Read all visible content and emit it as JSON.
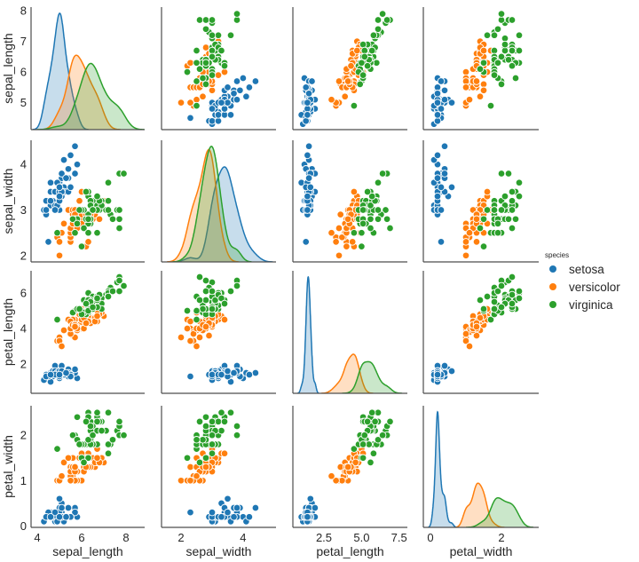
{
  "chart_data": {
    "type": "scatter",
    "subtype": "pairplot",
    "variables": [
      "sepal_length",
      "sepal_width",
      "petal_length",
      "petal_width"
    ],
    "diagonal": "kde",
    "grid": false,
    "legend": {
      "title": "species",
      "placement": "right",
      "entries": [
        "setosa",
        "versicolor",
        "virginica"
      ]
    },
    "colors": {
      "setosa": "#1f77b4",
      "versicolor": "#ff7f0e",
      "virginica": "#2ca02c"
    },
    "axes": {
      "sepal_length": {
        "label": "sepal_length",
        "xlim": [
          3.72,
          8.84
        ],
        "ylim": [
          4.12,
          8.12
        ],
        "xticks": [
          "4",
          "6",
          "8"
        ],
        "xtick_values": [
          4,
          6,
          8
        ],
        "yticks": [
          "5",
          "6",
          "7",
          "8"
        ],
        "ytick_values": [
          5,
          6,
          7,
          8
        ]
      },
      "sepal_width": {
        "label": "sepal_width",
        "xlim": [
          1.37,
          5.06
        ],
        "ylim": [
          1.86,
          4.53
        ],
        "xticks": [
          "2",
          "4"
        ],
        "xtick_values": [
          2,
          4
        ],
        "yticks": [
          "2",
          "3",
          "4"
        ],
        "ytick_values": [
          2,
          3,
          4
        ]
      },
      "petal_length": {
        "label": "petal_length",
        "xlim": [
          0.43,
          8.05
        ],
        "ylim": [
          0.35,
          7.25
        ],
        "xticks": [
          "2.5",
          "5.0",
          "7.5"
        ],
        "xtick_values": [
          2.5,
          5.0,
          7.5
        ],
        "yticks": [
          "2",
          "4",
          "6"
        ],
        "ytick_values": [
          2,
          4,
          6
        ]
      },
      "petal_width": {
        "label": "petal_width",
        "xlim": [
          -0.2,
          3.05
        ],
        "ylim": [
          -0.03,
          2.65
        ],
        "xticks": [
          "0",
          "2"
        ],
        "xtick_values": [
          0,
          2
        ],
        "yticks": [
          "0",
          "1",
          "2"
        ],
        "ytick_values": [
          0,
          1,
          2
        ]
      }
    },
    "series": [
      {
        "name": "setosa",
        "points": [
          [
            5.1,
            3.5,
            1.4,
            0.2
          ],
          [
            4.9,
            3.0,
            1.4,
            0.2
          ],
          [
            4.7,
            3.2,
            1.3,
            0.2
          ],
          [
            4.6,
            3.1,
            1.5,
            0.2
          ],
          [
            5.0,
            3.6,
            1.4,
            0.2
          ],
          [
            5.4,
            3.9,
            1.7,
            0.4
          ],
          [
            4.6,
            3.4,
            1.4,
            0.3
          ],
          [
            5.0,
            3.4,
            1.5,
            0.2
          ],
          [
            4.4,
            2.9,
            1.4,
            0.2
          ],
          [
            4.9,
            3.1,
            1.5,
            0.1
          ],
          [
            5.4,
            3.7,
            1.5,
            0.2
          ],
          [
            4.8,
            3.4,
            1.6,
            0.2
          ],
          [
            4.8,
            3.0,
            1.4,
            0.1
          ],
          [
            4.3,
            3.0,
            1.1,
            0.1
          ],
          [
            5.8,
            4.0,
            1.2,
            0.2
          ],
          [
            5.7,
            4.4,
            1.5,
            0.4
          ],
          [
            5.4,
            3.9,
            1.3,
            0.4
          ],
          [
            5.1,
            3.5,
            1.4,
            0.3
          ],
          [
            5.7,
            3.8,
            1.7,
            0.3
          ],
          [
            5.1,
            3.8,
            1.5,
            0.3
          ],
          [
            5.4,
            3.4,
            1.7,
            0.2
          ],
          [
            5.1,
            3.7,
            1.5,
            0.4
          ],
          [
            4.6,
            3.6,
            1.0,
            0.2
          ],
          [
            5.1,
            3.3,
            1.7,
            0.5
          ],
          [
            4.8,
            3.4,
            1.9,
            0.2
          ],
          [
            5.0,
            3.0,
            1.6,
            0.2
          ],
          [
            5.0,
            3.4,
            1.6,
            0.4
          ],
          [
            5.2,
            3.5,
            1.5,
            0.2
          ],
          [
            5.2,
            3.4,
            1.4,
            0.2
          ],
          [
            4.7,
            3.2,
            1.6,
            0.2
          ],
          [
            4.8,
            3.1,
            1.6,
            0.2
          ],
          [
            5.4,
            3.4,
            1.5,
            0.4
          ],
          [
            5.2,
            4.1,
            1.5,
            0.1
          ],
          [
            5.5,
            4.2,
            1.4,
            0.2
          ],
          [
            4.9,
            3.1,
            1.5,
            0.2
          ],
          [
            5.0,
            3.2,
            1.2,
            0.2
          ],
          [
            5.5,
            3.5,
            1.3,
            0.2
          ],
          [
            4.9,
            3.6,
            1.4,
            0.1
          ],
          [
            4.4,
            3.0,
            1.3,
            0.2
          ],
          [
            5.1,
            3.4,
            1.5,
            0.2
          ],
          [
            5.0,
            3.5,
            1.3,
            0.3
          ],
          [
            4.5,
            2.3,
            1.3,
            0.3
          ],
          [
            4.4,
            3.2,
            1.3,
            0.2
          ],
          [
            5.0,
            3.5,
            1.6,
            0.6
          ],
          [
            5.1,
            3.8,
            1.9,
            0.4
          ],
          [
            4.8,
            3.0,
            1.4,
            0.3
          ],
          [
            5.1,
            3.8,
            1.6,
            0.2
          ],
          [
            4.6,
            3.2,
            1.4,
            0.2
          ],
          [
            5.3,
            3.7,
            1.5,
            0.2
          ],
          [
            5.0,
            3.3,
            1.4,
            0.2
          ]
        ]
      },
      {
        "name": "versicolor",
        "points": [
          [
            7.0,
            3.2,
            4.7,
            1.4
          ],
          [
            6.4,
            3.2,
            4.5,
            1.5
          ],
          [
            6.9,
            3.1,
            4.9,
            1.5
          ],
          [
            5.5,
            2.3,
            4.0,
            1.3
          ],
          [
            6.5,
            2.8,
            4.6,
            1.5
          ],
          [
            5.7,
            2.8,
            4.5,
            1.3
          ],
          [
            6.3,
            3.3,
            4.7,
            1.6
          ],
          [
            4.9,
            2.4,
            3.3,
            1.0
          ],
          [
            6.6,
            2.9,
            4.6,
            1.3
          ],
          [
            5.2,
            2.7,
            3.9,
            1.4
          ],
          [
            5.0,
            2.0,
            3.5,
            1.0
          ],
          [
            5.9,
            3.0,
            4.2,
            1.5
          ],
          [
            6.0,
            2.2,
            4.0,
            1.0
          ],
          [
            6.1,
            2.9,
            4.7,
            1.4
          ],
          [
            5.6,
            2.9,
            3.6,
            1.3
          ],
          [
            6.7,
            3.1,
            4.4,
            1.4
          ],
          [
            5.6,
            3.0,
            4.5,
            1.5
          ],
          [
            5.8,
            2.7,
            4.1,
            1.0
          ],
          [
            6.2,
            2.2,
            4.5,
            1.5
          ],
          [
            5.6,
            2.5,
            3.9,
            1.1
          ],
          [
            5.9,
            3.2,
            4.8,
            1.8
          ],
          [
            6.1,
            2.8,
            4.0,
            1.3
          ],
          [
            6.3,
            2.5,
            4.9,
            1.5
          ],
          [
            6.1,
            2.8,
            4.7,
            1.2
          ],
          [
            6.4,
            2.9,
            4.3,
            1.3
          ],
          [
            6.6,
            3.0,
            4.4,
            1.4
          ],
          [
            6.8,
            2.8,
            4.8,
            1.4
          ],
          [
            6.7,
            3.0,
            5.0,
            1.7
          ],
          [
            6.0,
            2.9,
            4.5,
            1.5
          ],
          [
            5.7,
            2.6,
            3.5,
            1.0
          ],
          [
            5.5,
            2.4,
            3.8,
            1.1
          ],
          [
            5.5,
            2.4,
            3.7,
            1.0
          ],
          [
            5.8,
            2.7,
            3.9,
            1.2
          ],
          [
            6.0,
            2.7,
            5.1,
            1.6
          ],
          [
            5.4,
            3.0,
            4.5,
            1.5
          ],
          [
            6.0,
            3.4,
            4.5,
            1.6
          ],
          [
            6.7,
            3.1,
            4.7,
            1.5
          ],
          [
            6.3,
            2.3,
            4.4,
            1.3
          ],
          [
            5.6,
            3.0,
            4.1,
            1.3
          ],
          [
            5.5,
            2.5,
            4.0,
            1.3
          ],
          [
            5.5,
            2.6,
            4.4,
            1.2
          ],
          [
            6.1,
            3.0,
            4.6,
            1.4
          ],
          [
            5.8,
            2.6,
            4.0,
            1.2
          ],
          [
            5.0,
            2.3,
            3.3,
            1.0
          ],
          [
            5.6,
            2.7,
            4.2,
            1.3
          ],
          [
            5.7,
            3.0,
            4.2,
            1.2
          ],
          [
            5.7,
            2.9,
            4.2,
            1.3
          ],
          [
            6.2,
            2.9,
            4.3,
            1.3
          ],
          [
            5.1,
            2.5,
            3.0,
            1.1
          ],
          [
            5.7,
            2.8,
            4.1,
            1.3
          ]
        ]
      },
      {
        "name": "virginica",
        "points": [
          [
            6.3,
            3.3,
            6.0,
            2.5
          ],
          [
            5.8,
            2.7,
            5.1,
            1.9
          ],
          [
            7.1,
            3.0,
            5.9,
            2.1
          ],
          [
            6.3,
            2.9,
            5.6,
            1.8
          ],
          [
            6.5,
            3.0,
            5.8,
            2.2
          ],
          [
            7.6,
            3.0,
            6.6,
            2.1
          ],
          [
            4.9,
            2.5,
            4.5,
            1.7
          ],
          [
            7.3,
            2.9,
            6.3,
            1.8
          ],
          [
            6.7,
            2.5,
            5.8,
            1.8
          ],
          [
            7.2,
            3.6,
            6.1,
            2.5
          ],
          [
            6.5,
            3.2,
            5.1,
            2.0
          ],
          [
            6.4,
            2.7,
            5.3,
            1.9
          ],
          [
            6.8,
            3.0,
            5.5,
            2.1
          ],
          [
            5.7,
            2.5,
            5.0,
            2.0
          ],
          [
            5.8,
            2.8,
            5.1,
            2.4
          ],
          [
            6.4,
            3.2,
            5.3,
            2.3
          ],
          [
            6.5,
            3.0,
            5.5,
            1.8
          ],
          [
            7.7,
            3.8,
            6.7,
            2.2
          ],
          [
            7.7,
            2.6,
            6.9,
            2.3
          ],
          [
            6.0,
            2.2,
            5.0,
            1.5
          ],
          [
            6.9,
            3.2,
            5.7,
            2.3
          ],
          [
            5.6,
            2.8,
            4.9,
            2.0
          ],
          [
            7.7,
            2.8,
            6.7,
            2.0
          ],
          [
            6.3,
            2.7,
            4.9,
            1.8
          ],
          [
            6.7,
            3.3,
            5.7,
            2.1
          ],
          [
            7.2,
            3.2,
            6.0,
            1.8
          ],
          [
            6.2,
            2.8,
            4.8,
            1.8
          ],
          [
            6.1,
            3.0,
            4.9,
            1.8
          ],
          [
            6.4,
            2.8,
            5.6,
            2.1
          ],
          [
            7.2,
            3.0,
            5.8,
            1.6
          ],
          [
            7.4,
            2.8,
            6.1,
            1.9
          ],
          [
            7.9,
            3.8,
            6.4,
            2.0
          ],
          [
            6.4,
            2.8,
            5.6,
            2.2
          ],
          [
            6.3,
            2.8,
            5.1,
            1.5
          ],
          [
            6.1,
            2.6,
            5.6,
            1.4
          ],
          [
            7.7,
            3.0,
            6.1,
            2.3
          ],
          [
            6.3,
            3.4,
            5.6,
            2.4
          ],
          [
            6.4,
            3.1,
            5.5,
            1.8
          ],
          [
            6.0,
            3.0,
            4.8,
            1.8
          ],
          [
            6.9,
            3.1,
            5.4,
            2.1
          ],
          [
            6.7,
            3.1,
            5.6,
            2.4
          ],
          [
            6.9,
            3.1,
            5.1,
            2.3
          ],
          [
            5.8,
            2.7,
            5.1,
            1.9
          ],
          [
            6.8,
            3.2,
            5.9,
            2.3
          ],
          [
            6.7,
            3.3,
            5.7,
            2.5
          ],
          [
            6.7,
            3.0,
            5.2,
            2.3
          ],
          [
            6.3,
            2.5,
            5.0,
            1.9
          ],
          [
            6.5,
            3.0,
            5.2,
            2.0
          ],
          [
            6.2,
            3.4,
            5.4,
            2.3
          ],
          [
            5.9,
            3.0,
            5.1,
            1.8
          ]
        ]
      }
    ]
  }
}
